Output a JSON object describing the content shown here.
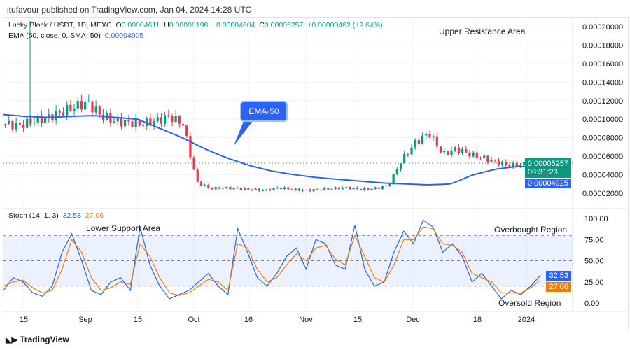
{
  "header": "itufavour published on TradingView.com, Jan 04, 2024 14:28 UTC",
  "legend": {
    "symbol": "Lucky Block / USDT, 1D, MEXC",
    "o_label": "O",
    "o": "0.00004611",
    "h_label": "H",
    "h": "0.00006198",
    "l_label": "L",
    "l": "0.00004604",
    "c_label": "C",
    "c": "0.00005257",
    "change": "+0.00000462 (+9.64%)",
    "ema_label": "EMA (50, close, 0, SMA, 50)",
    "ema": "0.00004925",
    "stoch_label": "Stoch (14, 1, 3)",
    "stoch_k": "32.53",
    "stoch_d": "27.06"
  },
  "annotations": {
    "upper": "Upper Resistance Area",
    "lower": "Lower Support Area",
    "ema_callout": "EMA-50",
    "overbought": "Overbought Region",
    "oversold": "Oversold Region"
  },
  "tags": {
    "price": "0.00005257",
    "countdown": "09:31:23",
    "ema": "0.00004925",
    "k": "32.53",
    "d": "27.06"
  },
  "footer": "TradingView",
  "colors": {
    "up": "#089981",
    "down": "#f23645",
    "ema": "#2962ff",
    "k": "#2962ff",
    "d": "#f57c00"
  },
  "chart_data": [
    {
      "type": "candlestick",
      "title": "Lucky Block / USDT, 1D, MEXC",
      "price_axis": [
        "0.00020000",
        "0.00018000",
        "0.00016000",
        "0.00014000",
        "0.00012000",
        "0.00010000",
        "0.00008000",
        "0.00006000",
        "0.00004000",
        "0.00002000"
      ],
      "x_ticks": [
        "15",
        "Sep",
        "15",
        "Oct",
        "16",
        "Nov",
        "15",
        "Dec",
        "18",
        "2024"
      ],
      "close_keypoints": [
        9.5e-05,
        9.3e-05,
        9.8e-05,
        0.000101,
        0.000107,
        0.000113,
        0.000118,
        0.000104,
        9.8e-05,
        9.6e-05,
        9.5e-05,
        9.8e-05,
        0.000103,
        9.5e-05,
        3.2e-05,
        2.5e-05,
        2.6e-05,
        2.5e-05,
        2.4e-05,
        2.3e-05,
        2.6e-05,
        2.4e-05,
        2.3e-05,
        2.4e-05,
        2.5e-05,
        2.6e-05,
        2.4e-05,
        2.5e-05,
        2.8e-05,
        5.6e-05,
        7.5e-05,
        8.5e-05,
        6.2e-05,
        6.8e-05,
        6.2e-05,
        5.8e-05,
        5.3e-05,
        5e-05,
        5.2e-05,
        5.3e-05
      ],
      "ema_keypoints": [
        0.000105,
        0.000103,
        0.000102,
        0.000103,
        0.000104,
        0.000102,
        0.0001,
        9e-05,
        8e-05,
        6.8e-05,
        5.8e-05,
        5e-05,
        4.4e-05,
        4e-05,
        3.7e-05,
        3.5e-05,
        3.3e-05,
        3.1e-05,
        3e-05,
        2.9e-05,
        3e-05,
        4e-05,
        4.6e-05,
        4.9e-05,
        4.9e-05
      ]
    },
    {
      "type": "line",
      "title": "Stoch (14, 1, 3)",
      "ylim": [
        0,
        100
      ],
      "y_ticks": [
        "100.00",
        "75.00",
        "50.00",
        "25.00",
        "0.00"
      ],
      "series": [
        {
          "name": "%K",
          "values": [
            15,
            30,
            25,
            12,
            8,
            20,
            60,
            82,
            50,
            15,
            10,
            25,
            30,
            15,
            90,
            45,
            20,
            5,
            10,
            15,
            25,
            35,
            20,
            10,
            88,
            60,
            30,
            20,
            35,
            55,
            65,
            40,
            75,
            70,
            45,
            40,
            92,
            40,
            20,
            25,
            60,
            85,
            70,
            98,
            90,
            60,
            70,
            55,
            25,
            35,
            20,
            5,
            15,
            10,
            20,
            32.53
          ]
        },
        {
          "name": "%D",
          "values": [
            20,
            25,
            27,
            18,
            12,
            15,
            40,
            75,
            60,
            30,
            15,
            18,
            25,
            22,
            70,
            55,
            30,
            12,
            9,
            12,
            20,
            28,
            25,
            15,
            70,
            65,
            40,
            25,
            30,
            45,
            58,
            50,
            65,
            68,
            52,
            45,
            80,
            55,
            30,
            25,
            45,
            75,
            75,
            90,
            88,
            70,
            68,
            60,
            35,
            30,
            25,
            12,
            12,
            12,
            18,
            27.06
          ]
        }
      ]
    }
  ]
}
